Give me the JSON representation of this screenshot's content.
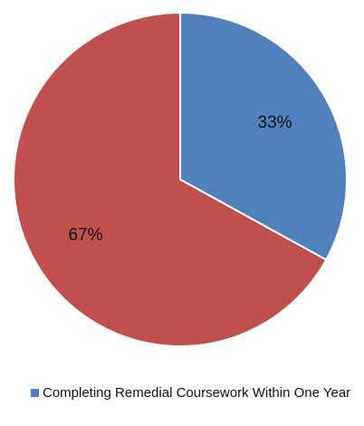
{
  "chart_data": {
    "type": "pie",
    "slices": [
      {
        "label": "33%",
        "value": 33,
        "color": "#4F81BD"
      },
      {
        "label": "67%",
        "value": 67,
        "color": "#C0504D"
      }
    ],
    "start_angle_deg": 0,
    "direction": "clockwise",
    "legend": {
      "placement": "bottom",
      "entries": [
        {
          "name": "Completing Remedial Coursework Within One Year",
          "color": "#4F81BD"
        }
      ]
    }
  }
}
